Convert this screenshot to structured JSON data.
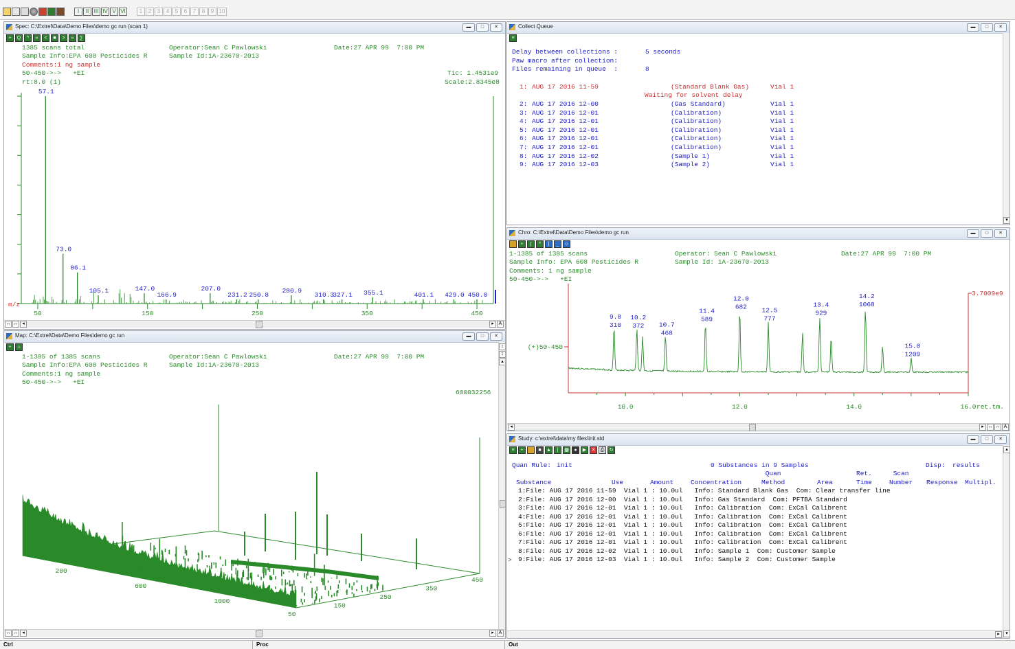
{
  "toolbar": {
    "tools": [
      "open-icon",
      "probe-icon",
      "print-icon",
      "globe-icon",
      "spectrum-icon",
      "map-icon",
      "chart-icon"
    ],
    "layout_buttons": [
      "I",
      "II",
      "III",
      "IV",
      "V",
      "VI"
    ],
    "window_slots": [
      "1",
      "2",
      "3",
      "4",
      "5",
      "6",
      "7",
      "8",
      "9",
      "10"
    ]
  },
  "spec": {
    "title": "Spec: C:\\Extrel\\Data\\Demo Files\\demo gc run (scan 1)",
    "scans": "1385 scans total",
    "operator": "Operator:Sean C Pawlowski",
    "date": "Date:27 APR 99  7:00 PM",
    "sample_info": "Sample Info:EPA 608 Pesticides R",
    "sample_id": "Sample Id:1A-23670-2013",
    "comments": "Comments:1 ng sample",
    "range": "50-450->->   +EI",
    "tic": "Tic: 1.4531e9",
    "rt": "rt:8.0 (1)",
    "scale": "Scale:2.8345e8",
    "axis_label": "m/z",
    "chart_data": {
      "type": "bar",
      "xlabel": "m/z",
      "xlim": [
        35,
        465
      ],
      "x_ticks": [
        50,
        150,
        250,
        350,
        450
      ],
      "peaks": [
        {
          "mz": 57.1,
          "rel": 100
        },
        {
          "mz": 73.0,
          "rel": 24
        },
        {
          "mz": 86.1,
          "rel": 15
        },
        {
          "mz": 105.1,
          "rel": 4
        },
        {
          "mz": 147.0,
          "rel": 5
        },
        {
          "mz": 166.9,
          "rel": 2
        },
        {
          "mz": 207.0,
          "rel": 5
        },
        {
          "mz": 231.2,
          "rel": 2
        },
        {
          "mz": 250.8,
          "rel": 2
        },
        {
          "mz": 280.9,
          "rel": 4
        },
        {
          "mz": 310.3,
          "rel": 2
        },
        {
          "mz": 327.1,
          "rel": 2
        },
        {
          "mz": 355.1,
          "rel": 3
        },
        {
          "mz": 401.1,
          "rel": 2
        },
        {
          "mz": 429.0,
          "rel": 2
        },
        {
          "mz": 450.0,
          "rel": 2
        }
      ],
      "peak_labels": [
        "57.1",
        "73.0",
        "86.1",
        "105.1",
        "147.0",
        "166.9",
        "207.0",
        "231.2",
        "250.8",
        "280.9",
        "310.3",
        "327.1",
        "355.1",
        "401.1",
        "429.0",
        "450.0"
      ]
    }
  },
  "map": {
    "title": "Map: C:\\Extrel\\Data\\Demo Files\\demo gc run",
    "scans": "1-1385 of 1385 scans",
    "operator": "Operator:Sean C Pawlowski",
    "date": "Date:27 APR 99  7:00 PM",
    "sample_info": "Sample Info:EPA 608 Pesticides R",
    "sample_id": "Sample Id:1A-23670-2013",
    "comments": "Comments:1 ng sample",
    "range": "50-450->->   +EI",
    "max": "600032256",
    "scan_axis": [
      "200",
      "600",
      "1000"
    ],
    "mz_axis": [
      "50",
      "150",
      "250",
      "350",
      "450"
    ]
  },
  "queue": {
    "title": "Collect Queue",
    "delay_label": "Delay between collections :",
    "delay_value": "5 seconds",
    "paw_label": "Paw macro after collection:",
    "remaining_label": "Files remaining in queue  :",
    "remaining_value": "8",
    "waiting": "Waiting for solvent delay",
    "items": [
      {
        "num": "1:",
        "file": "AUG 17 2016 11-59",
        "method": "(Standard Blank Gas)",
        "vial": "Vial 1"
      },
      {
        "num": "2:",
        "file": "AUG 17 2016 12-00",
        "method": "(Gas Standard)",
        "vial": "Vial 1"
      },
      {
        "num": "3:",
        "file": "AUG 17 2016 12-01",
        "method": "(Calibration)",
        "vial": "Vial 1"
      },
      {
        "num": "4:",
        "file": "AUG 17 2016 12-01",
        "method": "(Calibration)",
        "vial": "Vial 1"
      },
      {
        "num": "5:",
        "file": "AUG 17 2016 12-01",
        "method": "(Calibration)",
        "vial": "Vial 1"
      },
      {
        "num": "6:",
        "file": "AUG 17 2016 12-01",
        "method": "(Calibration)",
        "vial": "Vial 1"
      },
      {
        "num": "7:",
        "file": "AUG 17 2016 12-01",
        "method": "(Calibration)",
        "vial": "Vial 1"
      },
      {
        "num": "8:",
        "file": "AUG 17 2016 12-02",
        "method": "(Sample 1)",
        "vial": "Vial 1"
      },
      {
        "num": "9:",
        "file": "AUG 17 2016 12-03",
        "method": "(Sample 2)",
        "vial": "Vial 1"
      }
    ]
  },
  "chro": {
    "title": "Chro: C:\\Extrel\\Data\\Demo Files\\demo gc run",
    "scans": "1-1385 of 1385 scans",
    "operator": "Operator: Sean C Pawlowski",
    "date": "Date:27 APR 99  7:00 PM",
    "sample_info": "Sample Info: EPA 608 Pesticides R",
    "sample_id": "Sample Id: 1A-23670-2013",
    "comments": "Comments: 1 ng sample",
    "range": "50-450->->   +EI",
    "trace_label": "(+)50-450",
    "scale": "3.7009e9",
    "xunit": "ret.tm.",
    "chart_data": {
      "type": "line",
      "xlabel": "ret.tm.",
      "xlim": [
        9.0,
        16.0
      ],
      "x_ticks": [
        "10.0",
        "12.0",
        "14.0",
        "16.0"
      ],
      "peaks": [
        {
          "rt": 9.8,
          "scan": 310,
          "rel": 0.55
        },
        {
          "rt": 10.2,
          "scan": 372,
          "rel": 0.54
        },
        {
          "rt": 10.3,
          "scan": null,
          "rel": 0.43
        },
        {
          "rt": 10.7,
          "scan": 468,
          "rel": 0.45
        },
        {
          "rt": 11.4,
          "scan": 589,
          "rel": 0.62
        },
        {
          "rt": 12.0,
          "scan": 682,
          "rel": 0.78
        },
        {
          "rt": 12.5,
          "scan": 777,
          "rel": 0.63
        },
        {
          "rt": 13.1,
          "scan": null,
          "rel": 0.5
        },
        {
          "rt": 13.4,
          "scan": 929,
          "rel": 0.7
        },
        {
          "rt": 13.6,
          "scan": null,
          "rel": 0.45
        },
        {
          "rt": 14.2,
          "scan": 1068,
          "rel": 0.81
        },
        {
          "rt": 14.5,
          "scan": null,
          "rel": 0.33
        },
        {
          "rt": 15.0,
          "scan": 1209,
          "rel": 0.18
        }
      ],
      "labels": [
        {
          "rt": "9.8",
          "scan": "310"
        },
        {
          "rt": "10.2",
          "scan": "372"
        },
        {
          "rt": "10.7",
          "scan": "468"
        },
        {
          "rt": "11.4",
          "scan": "589"
        },
        {
          "rt": "12.0",
          "scan": "682"
        },
        {
          "rt": "12.5",
          "scan": "777"
        },
        {
          "rt": "13.4",
          "scan": "929"
        },
        {
          "rt": "14.2",
          "scan": "1068"
        },
        {
          "rt": "15.0",
          "scan": "1209"
        }
      ]
    }
  },
  "study": {
    "title": "Study: c:\\extrel\\data\\my files\\init.std",
    "quan_rule_label": "Quan Rule:",
    "quan_rule_value": "init",
    "summary": "0 Substances in 9 Samples",
    "disp_label": "Disp:",
    "disp_value": "results",
    "headers": {
      "substance": "Substance",
      "use": "Use",
      "amount": "Amount",
      "concentration": "Concentration",
      "quan_method": "Quan\nMethod",
      "area": "Area",
      "ret_time": "Ret.\nTime",
      "scan_number": "Scan\nNumber",
      "response": "Response",
      "multipl": "Multipl."
    },
    "rows": [
      "1:File: AUG 17 2016 11-59  Vial 1 : 10.0ul   Info: Standard Blank Gas  Com: Clear transfer line",
      "2:File: AUG 17 2016 12-00  Vial 1 : 10.0ul   Info: Gas Standard  Com: PFTBA Standard",
      "3:File: AUG 17 2016 12-01  Vial 1 : 10.0ul   Info: Calibration  Com: ExCal Calibrent",
      "4:File: AUG 17 2016 12-01  Vial 1 : 10.0ul   Info: Calibration  Com: ExCal Calibrent",
      "5:File: AUG 17 2016 12-01  Vial 1 : 10.0ul   Info: Calibration  Com: ExCal Calibrent",
      "6:File: AUG 17 2016 12-01  Vial 1 : 10.0ul   Info: Calibration  Com: ExCal Calibrent",
      "7:File: AUG 17 2016 12-01  Vial 1 : 10.0ul   Info: Calibration  Com: ExCal Calibrent",
      "8:File: AUG 17 2016 12-02  Vial 1 : 10.0ul   Info: Sample 1  Com: Customer Sample",
      "9:File: AUG 17 2016 12-03  Vial 1 : 10.0ul   Info: Sample 2  Com: Customer Sample"
    ],
    "row_marker": ">"
  },
  "status": {
    "ctrl": "Ctrl",
    "proc": "Proc",
    "out": "Out"
  },
  "colors": {
    "green": "#2a8a2a",
    "blue": "#2020c8",
    "red": "#c83030",
    "accent": "#2b6cc4"
  }
}
